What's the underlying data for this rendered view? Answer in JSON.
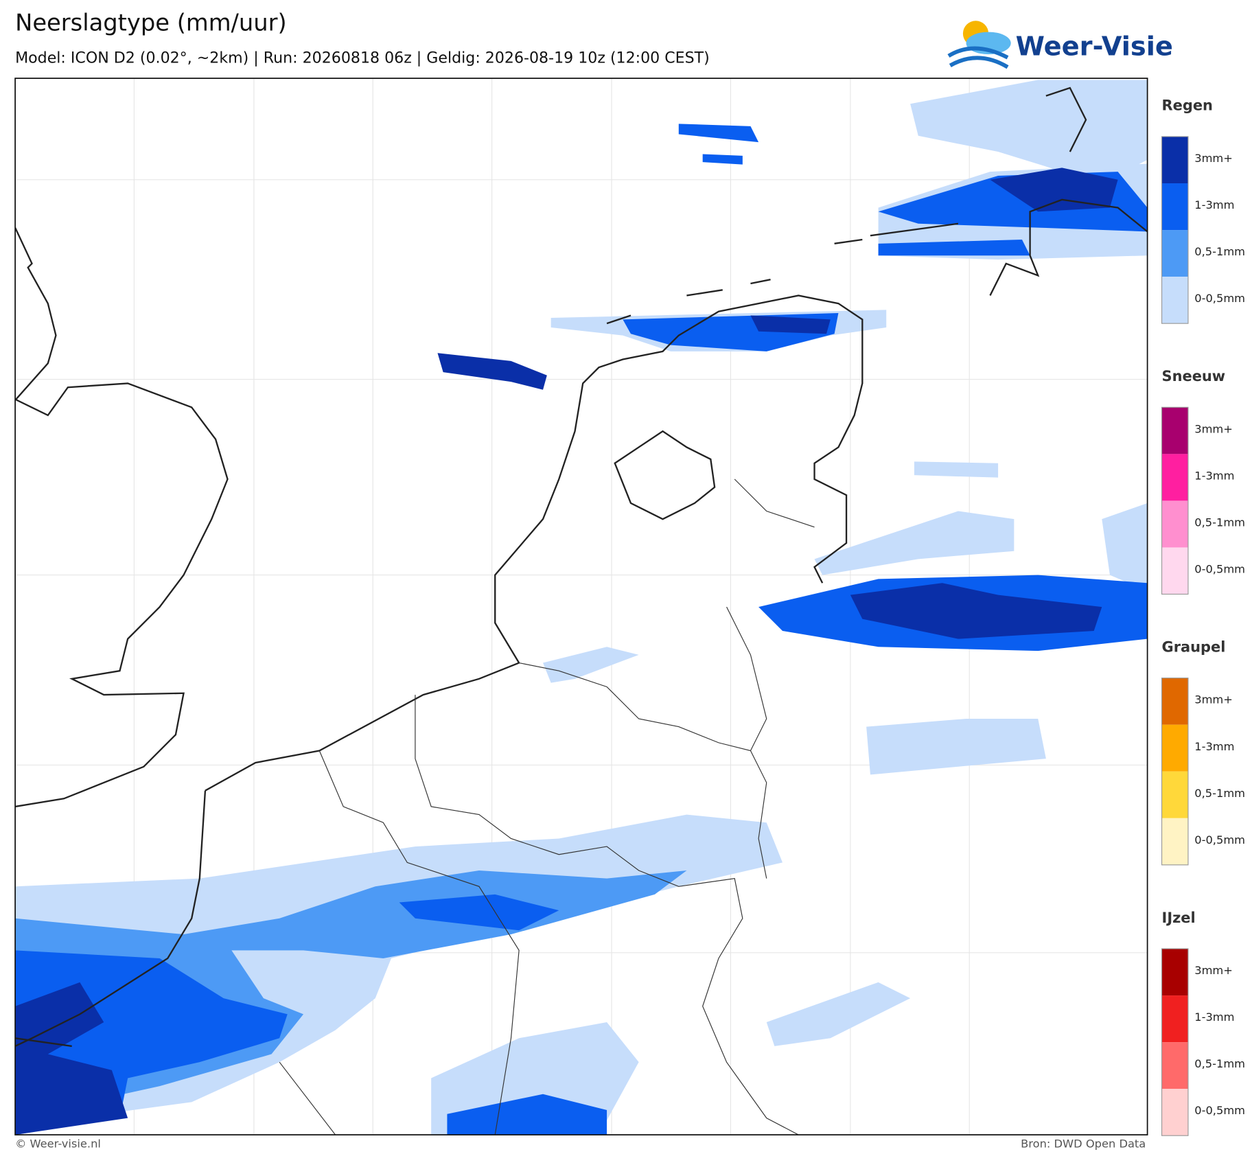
{
  "header": {
    "title": "Neerslagtype (mm/uur)",
    "subtitle": "Model: ICON D2 (0.02°, ~2km)  |  Run: 20260818 06z  |  Geldig: 2026-08-19 10z (12:00 CEST)"
  },
  "logo": {
    "text": "Weer-Visie"
  },
  "legend": [
    {
      "title": "Regen",
      "items": [
        {
          "label": "3mm+",
          "color": "#0a2fa8"
        },
        {
          "label": "1-3mm",
          "color": "#0a5ef0"
        },
        {
          "label": "0,5-1mm",
          "color": "#4d9af5"
        },
        {
          "label": "0-0,5mm",
          "color": "#c6ddfb"
        }
      ]
    },
    {
      "title": "Sneeuw",
      "items": [
        {
          "label": "3mm+",
          "color": "#a8006e"
        },
        {
          "label": "1-3mm",
          "color": "#ff1fa0"
        },
        {
          "label": "0,5-1mm",
          "color": "#ff8fcf"
        },
        {
          "label": "0-0,5mm",
          "color": "#ffd8ee"
        }
      ]
    },
    {
      "title": "Graupel",
      "items": [
        {
          "label": "3mm+",
          "color": "#e06800"
        },
        {
          "label": "1-3mm",
          "color": "#ffaa00"
        },
        {
          "label": "0,5-1mm",
          "color": "#ffd83a"
        },
        {
          "label": "0-0,5mm",
          "color": "#fff3c4"
        }
      ]
    },
    {
      "title": "IJzel",
      "items": [
        {
          "label": "3mm+",
          "color": "#a80000"
        },
        {
          "label": "1-3mm",
          "color": "#f02020"
        },
        {
          "label": "0,5-1mm",
          "color": "#ff6a6a"
        },
        {
          "label": "0-0,5mm",
          "color": "#ffd0d0"
        }
      ]
    }
  ],
  "footer": {
    "left": "© Weer-visie.nl",
    "right": "Bron: DWD Open Data"
  }
}
